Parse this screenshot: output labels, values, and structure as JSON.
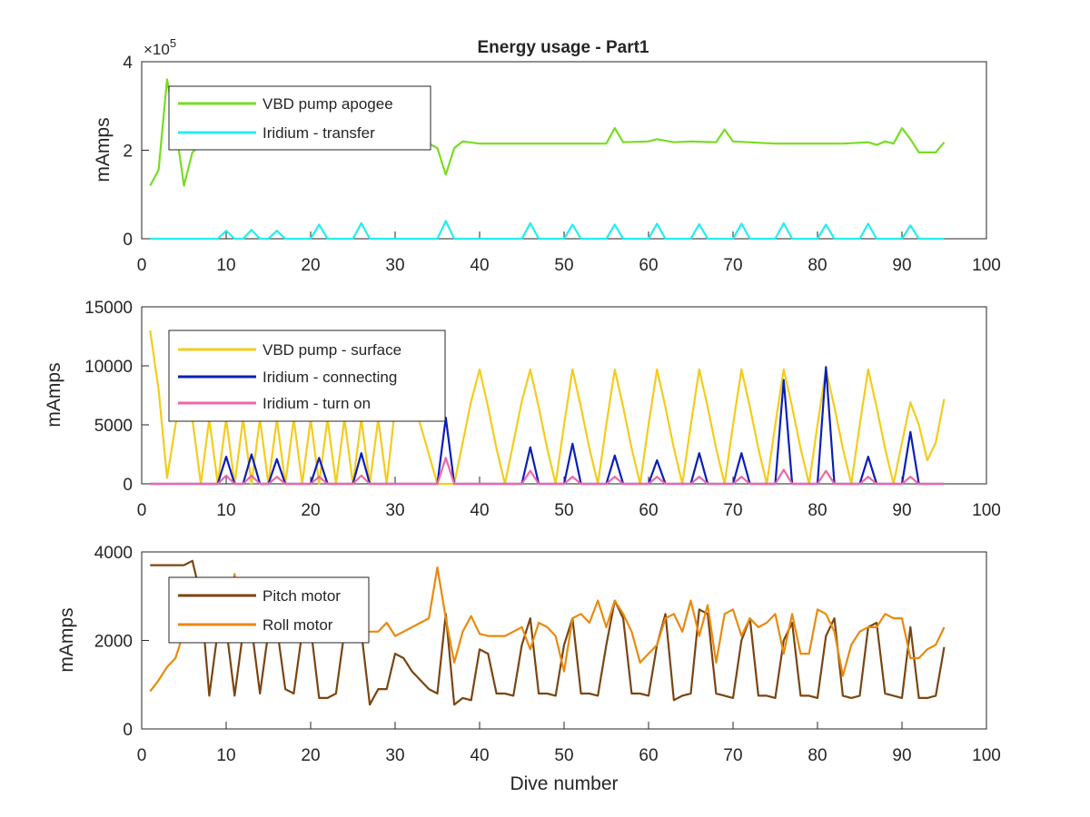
{
  "figure": {
    "title": "Energy usage - Part1"
  },
  "chart_data": [
    {
      "type": "line",
      "title": "Energy usage - Part1",
      "xlabel": "",
      "ylabel": "mAmps",
      "xlim": [
        0,
        100
      ],
      "ylim": [
        0,
        400000
      ],
      "xticks": [
        "0",
        "10",
        "20",
        "30",
        "40",
        "50",
        "60",
        "70",
        "80",
        "90",
        "100"
      ],
      "yticks": [
        "0",
        "2",
        "4"
      ],
      "yexponent": "× 10^5",
      "exp_mult": "×10",
      "exp_pow": "5",
      "legend": "top-left",
      "series": [
        {
          "name": "VBD pump apogee",
          "color": "#77dd22",
          "x": [
            1,
            2,
            3,
            4,
            5,
            6,
            7,
            34,
            35,
            36,
            37,
            38,
            40,
            45,
            50,
            55,
            56,
            57,
            60,
            61,
            63,
            65,
            68,
            69,
            70,
            75,
            80,
            83,
            86,
            87,
            88,
            89,
            90,
            91,
            92,
            93,
            94,
            95
          ],
          "y": [
            120000,
            155000,
            360000,
            255000,
            120000,
            195000,
            215000,
            215000,
            205000,
            145000,
            205000,
            220000,
            215000,
            215000,
            215000,
            215000,
            250000,
            218000,
            220000,
            225000,
            218000,
            220000,
            218000,
            247000,
            220000,
            215000,
            215000,
            215000,
            218000,
            212000,
            220000,
            215000,
            250000,
            225000,
            195000,
            195000,
            195000,
            218000
          ]
        },
        {
          "name": "Iridium - transfer",
          "color": "#22eeee",
          "x": [
            1,
            9,
            10,
            11,
            12,
            13,
            14,
            15,
            16,
            17,
            20,
            21,
            22,
            25,
            26,
            27,
            35,
            36,
            37,
            45,
            46,
            47,
            50,
            51,
            52,
            55,
            56,
            57,
            60,
            61,
            62,
            65,
            66,
            67,
            70,
            71,
            72,
            75,
            76,
            77,
            80,
            81,
            82,
            85,
            86,
            87,
            90,
            91,
            92,
            95
          ],
          "y": [
            0,
            0,
            18000,
            0,
            0,
            20000,
            0,
            0,
            18000,
            0,
            0,
            32000,
            0,
            0,
            35000,
            0,
            0,
            40000,
            0,
            0,
            35000,
            0,
            0,
            32000,
            0,
            0,
            32000,
            0,
            0,
            34000,
            0,
            0,
            33000,
            0,
            0,
            34000,
            0,
            0,
            35000,
            0,
            0,
            32000,
            0,
            0,
            34000,
            0,
            0,
            30000,
            0,
            0
          ]
        }
      ]
    },
    {
      "type": "line",
      "xlabel": "",
      "ylabel": "mAmps",
      "xlim": [
        0,
        100
      ],
      "ylim": [
        0,
        15000
      ],
      "xticks": [
        "0",
        "10",
        "20",
        "30",
        "40",
        "50",
        "60",
        "70",
        "80",
        "90",
        "100"
      ],
      "yticks": [
        "0",
        "5000",
        "10000",
        "15000"
      ],
      "legend": "top-left",
      "series": [
        {
          "name": "VBD pump - surface",
          "color": "#f4cc1c",
          "x": [
            1,
            2,
            3,
            4,
            5,
            6,
            7,
            8,
            9,
            10,
            11,
            12,
            13,
            14,
            15,
            16,
            17,
            18,
            19,
            20,
            21,
            22,
            23,
            24,
            25,
            26,
            27,
            28,
            29,
            30,
            31,
            32,
            33,
            34,
            35,
            36,
            37,
            38,
            39,
            40,
            41,
            42,
            43,
            44,
            45,
            46,
            47,
            48,
            49,
            50,
            51,
            52,
            53,
            54,
            55,
            56,
            57,
            58,
            59,
            60,
            61,
            62,
            63,
            64,
            65,
            66,
            67,
            68,
            69,
            70,
            71,
            72,
            73,
            74,
            75,
            76,
            77,
            78,
            79,
            80,
            81,
            82,
            83,
            84,
            85,
            86,
            87,
            88,
            89,
            90,
            91,
            92,
            93,
            94,
            95
          ],
          "y": [
            13000,
            8000,
            500,
            5000,
            8500,
            5500,
            0,
            5500,
            0,
            5500,
            0,
            5500,
            0,
            5500,
            0,
            5500,
            0,
            5500,
            0,
            5500,
            0,
            5500,
            0,
            5500,
            0,
            5500,
            0,
            5500,
            0,
            6500,
            9000,
            7000,
            5000,
            2500,
            0,
            0,
            0,
            3500,
            7000,
            9700,
            6500,
            3000,
            0,
            3500,
            7000,
            9700,
            6500,
            3000,
            0,
            5000,
            9700,
            6500,
            3000,
            0,
            5000,
            9700,
            6500,
            3000,
            0,
            5000,
            9700,
            6500,
            3000,
            0,
            5000,
            9700,
            6500,
            3000,
            0,
            5000,
            9700,
            6500,
            3000,
            0,
            5000,
            9700,
            6500,
            3000,
            0,
            5000,
            9700,
            6500,
            3000,
            0,
            5000,
            9700,
            6500,
            3000,
            0,
            3500,
            6900,
            5000,
            2000,
            3500,
            7200
          ]
        },
        {
          "name": "Iridium - connecting",
          "color": "#0a1fb8",
          "x": [
            1,
            9,
            10,
            11,
            12,
            13,
            14,
            15,
            16,
            17,
            20,
            21,
            22,
            25,
            26,
            27,
            35,
            36,
            37,
            45,
            46,
            47,
            50,
            51,
            52,
            55,
            56,
            57,
            60,
            61,
            62,
            65,
            66,
            67,
            70,
            71,
            72,
            75,
            76,
            77,
            80,
            81,
            82,
            85,
            86,
            87,
            90,
            91,
            92,
            95
          ],
          "y": [
            0,
            0,
            2300,
            0,
            0,
            2500,
            0,
            0,
            2100,
            0,
            0,
            2200,
            0,
            0,
            2600,
            0,
            0,
            5600,
            0,
            0,
            3100,
            0,
            0,
            3400,
            0,
            0,
            2400,
            0,
            0,
            2000,
            0,
            0,
            2600,
            0,
            0,
            2600,
            0,
            0,
            8800,
            0,
            0,
            9900,
            0,
            0,
            2300,
            0,
            0,
            4400,
            0,
            0
          ]
        },
        {
          "name": "Iridium - turn on",
          "color": "#ee66aa",
          "x": [
            1,
            9,
            10,
            11,
            12,
            13,
            14,
            15,
            16,
            17,
            20,
            21,
            22,
            25,
            26,
            27,
            35,
            36,
            37,
            45,
            46,
            47,
            50,
            51,
            52,
            55,
            56,
            57,
            60,
            61,
            62,
            65,
            66,
            67,
            70,
            71,
            72,
            75,
            76,
            77,
            80,
            81,
            82,
            85,
            86,
            87,
            90,
            91,
            92,
            95
          ],
          "y": [
            0,
            0,
            700,
            0,
            0,
            700,
            0,
            0,
            600,
            0,
            0,
            600,
            0,
            0,
            700,
            0,
            0,
            2200,
            0,
            0,
            1100,
            0,
            0,
            600,
            0,
            0,
            600,
            0,
            0,
            600,
            0,
            0,
            600,
            0,
            0,
            600,
            0,
            0,
            1200,
            0,
            0,
            1100,
            0,
            0,
            600,
            0,
            0,
            600,
            0,
            0
          ]
        }
      ]
    },
    {
      "type": "line",
      "xlabel": "Dive number",
      "ylabel": "mAmps",
      "xlim": [
        0,
        100
      ],
      "ylim": [
        0,
        4000
      ],
      "xticks": [
        "0",
        "10",
        "20",
        "30",
        "40",
        "50",
        "60",
        "70",
        "80",
        "90",
        "100"
      ],
      "yticks": [
        "0",
        "2000",
        "4000"
      ],
      "legend": "top-left",
      "series": [
        {
          "name": "Pitch motor",
          "color": "#7a4512",
          "x": [
            1,
            2,
            3,
            4,
            5,
            6,
            7,
            8,
            9,
            10,
            11,
            12,
            13,
            14,
            15,
            16,
            17,
            18,
            19,
            20,
            21,
            22,
            23,
            24,
            25,
            26,
            27,
            28,
            29,
            30,
            31,
            32,
            33,
            34,
            35,
            36,
            37,
            38,
            39,
            40,
            41,
            42,
            43,
            44,
            45,
            46,
            47,
            48,
            49,
            50,
            51,
            52,
            53,
            54,
            55,
            56,
            57,
            58,
            59,
            60,
            61,
            62,
            63,
            64,
            65,
            66,
            67,
            68,
            69,
            70,
            71,
            72,
            73,
            74,
            75,
            76,
            77,
            78,
            79,
            80,
            81,
            82,
            83,
            84,
            85,
            86,
            87,
            88,
            89,
            90,
            91,
            92,
            93,
            94,
            95
          ],
          "y": [
            3700,
            3700,
            3700,
            3700,
            3700,
            3800,
            3000,
            750,
            2200,
            2300,
            750,
            2200,
            2300,
            800,
            2200,
            2300,
            900,
            800,
            2200,
            2300,
            700,
            700,
            800,
            2200,
            2300,
            2200,
            550,
            900,
            900,
            1700,
            1600,
            1300,
            1100,
            900,
            800,
            2600,
            550,
            700,
            650,
            1800,
            1700,
            800,
            800,
            750,
            1900,
            2500,
            800,
            800,
            750,
            1900,
            2500,
            800,
            800,
            750,
            1900,
            2900,
            2500,
            800,
            800,
            750,
            1900,
            2600,
            650,
            750,
            800,
            2700,
            2600,
            800,
            750,
            700,
            2000,
            2500,
            750,
            750,
            700,
            2000,
            2400,
            750,
            750,
            700,
            2100,
            2500,
            750,
            700,
            750,
            2300,
            2400,
            800,
            750,
            700,
            2300,
            700,
            700,
            750,
            1850
          ]
        },
        {
          "name": "Roll motor",
          "color": "#e98a0f",
          "x": [
            1,
            2,
            3,
            4,
            5,
            6,
            7,
            8,
            9,
            10,
            11,
            12,
            13,
            14,
            15,
            16,
            17,
            18,
            19,
            20,
            21,
            22,
            23,
            24,
            25,
            26,
            27,
            28,
            29,
            30,
            31,
            32,
            33,
            34,
            35,
            36,
            37,
            38,
            39,
            40,
            41,
            42,
            43,
            44,
            45,
            46,
            47,
            48,
            49,
            50,
            51,
            52,
            53,
            54,
            55,
            56,
            57,
            58,
            59,
            60,
            61,
            62,
            63,
            64,
            65,
            66,
            67,
            68,
            69,
            70,
            71,
            72,
            73,
            74,
            75,
            76,
            77,
            78,
            79,
            80,
            81,
            82,
            83,
            84,
            85,
            86,
            87,
            88,
            89,
            90,
            91,
            92,
            93,
            94,
            95
          ],
          "y": [
            850,
            1100,
            1400,
            1600,
            2200,
            2300,
            2400,
            2300,
            2200,
            2300,
            3500,
            2000,
            2300,
            2200,
            2300,
            2200,
            2300,
            2200,
            2300,
            2200,
            2300,
            2200,
            2300,
            2200,
            2300,
            2200,
            2200,
            2200,
            2400,
            2100,
            2200,
            2300,
            2400,
            2500,
            3650,
            2500,
            1500,
            2200,
            2550,
            2150,
            2100,
            2100,
            2100,
            2200,
            2300,
            1800,
            2400,
            2300,
            2100,
            1300,
            2500,
            2600,
            2400,
            2900,
            2300,
            2900,
            2600,
            2200,
            1500,
            1700,
            1900,
            2500,
            2600,
            2200,
            2900,
            2100,
            2800,
            1500,
            2600,
            2700,
            2100,
            2500,
            2300,
            2400,
            2600,
            1700,
            2600,
            1700,
            1700,
            2700,
            2600,
            2200,
            1200,
            1900,
            2200,
            2300,
            2300,
            2600,
            2500,
            2500,
            1600,
            1600,
            1800,
            1900,
            2300
          ]
        }
      ]
    }
  ]
}
